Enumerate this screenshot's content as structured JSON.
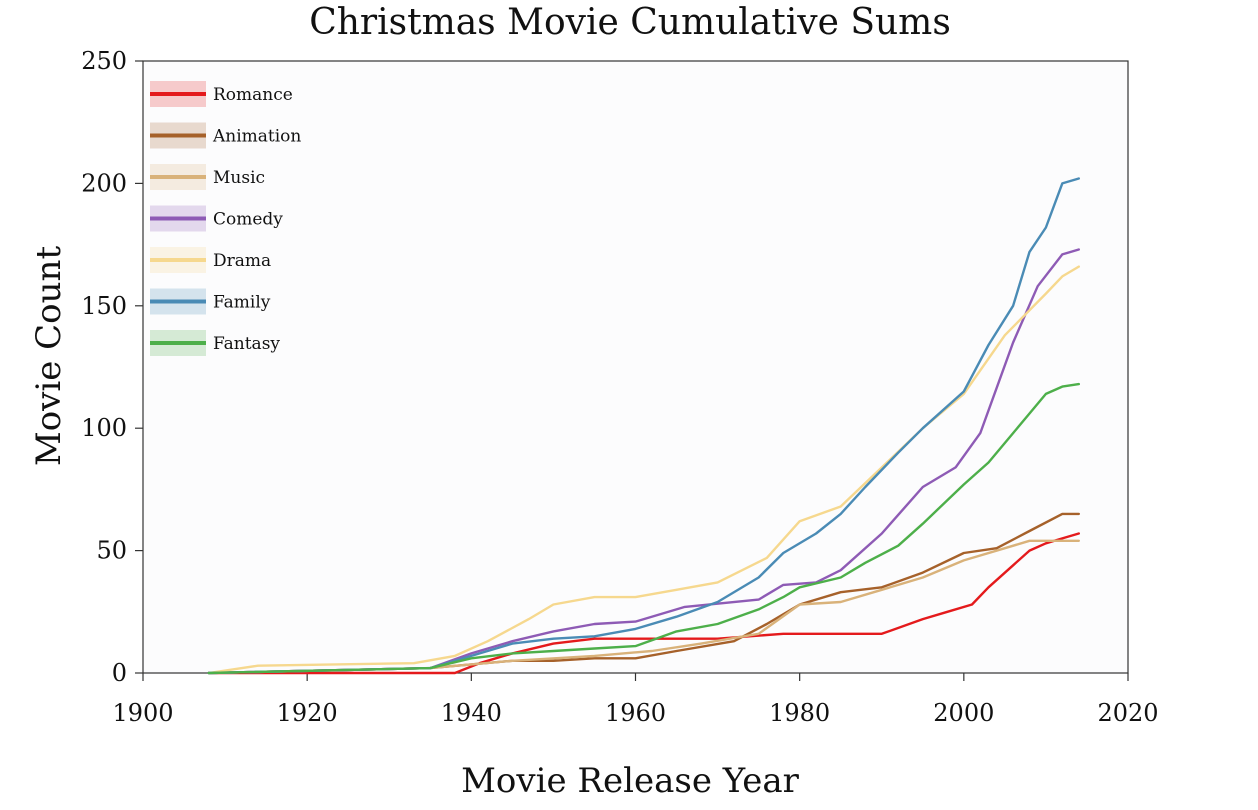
{
  "chart_data": {
    "type": "line",
    "title": "Christmas Movie Cumulative Sums",
    "xlabel": "Movie Release Year",
    "ylabel": "Movie Count",
    "xlim": [
      1900,
      2020
    ],
    "ylim": [
      0,
      250
    ],
    "xticks": [
      1900,
      1920,
      1940,
      1960,
      1980,
      2000,
      2020
    ],
    "yticks": [
      0,
      50,
      100,
      150,
      200,
      250
    ],
    "legend_position": "top-left",
    "grid": false,
    "series": [
      {
        "name": "Romance",
        "color": "#e41a1c",
        "x": [
          1908,
          1938,
          1941,
          1945,
          1950,
          1955,
          1960,
          1970,
          1978,
          1990,
          1995,
          1998,
          2001,
          2003,
          2006,
          2008,
          2010,
          2012,
          2014
        ],
        "y": [
          0,
          0,
          4,
          8,
          12,
          14,
          14,
          14,
          16,
          16,
          22,
          25,
          28,
          35,
          44,
          50,
          53,
          55,
          57
        ]
      },
      {
        "name": "Animation",
        "color": "#a6612a",
        "x": [
          1908,
          1935,
          1945,
          1950,
          1955,
          1960,
          1965,
          1972,
          1976,
          1980,
          1985,
          1990,
          1995,
          2000,
          2004,
          2008,
          2012,
          2014
        ],
        "y": [
          0,
          2,
          5,
          5,
          6,
          6,
          9,
          13,
          20,
          28,
          33,
          35,
          41,
          49,
          51,
          58,
          65,
          65
        ]
      },
      {
        "name": "Music",
        "color": "#d9b27a",
        "x": [
          1908,
          1935,
          1945,
          1955,
          1962,
          1968,
          1975,
          1980,
          1985,
          1990,
          1995,
          2000,
          2005,
          2008,
          2014
        ],
        "y": [
          0,
          2,
          5,
          7,
          9,
          12,
          16,
          28,
          29,
          34,
          39,
          46,
          51,
          54,
          54
        ]
      },
      {
        "name": "Comedy",
        "color": "#8e5bb5",
        "x": [
          1908,
          1935,
          1940,
          1945,
          1950,
          1955,
          1960,
          1966,
          1975,
          1978,
          1982,
          1985,
          1990,
          1995,
          1999,
          2002,
          2006,
          2009,
          2012,
          2014
        ],
        "y": [
          0,
          2,
          8,
          13,
          17,
          20,
          21,
          27,
          30,
          36,
          37,
          42,
          57,
          76,
          84,
          98,
          135,
          158,
          171,
          173
        ]
      },
      {
        "name": "Drama",
        "color": "#f6d88e",
        "x": [
          1908,
          1914,
          1933,
          1938,
          1942,
          1947,
          1950,
          1955,
          1960,
          1965,
          1970,
          1976,
          1980,
          1985,
          1990,
          1995,
          2000,
          2005,
          2010,
          2012,
          2014
        ],
        "y": [
          0,
          3,
          4,
          7,
          13,
          22,
          28,
          31,
          31,
          34,
          37,
          47,
          62,
          68,
          84,
          100,
          114,
          138,
          155,
          162,
          166
        ]
      },
      {
        "name": "Family",
        "color": "#4a8bb5",
        "x": [
          1908,
          1935,
          1940,
          1945,
          1950,
          1955,
          1960,
          1965,
          1970,
          1975,
          1978,
          1982,
          1985,
          1988,
          1992,
          1995,
          2000,
          2003,
          2006,
          2008,
          2010,
          2012,
          2014
        ],
        "y": [
          0,
          2,
          7,
          12,
          14,
          15,
          18,
          23,
          29,
          39,
          49,
          57,
          65,
          76,
          90,
          100,
          115,
          134,
          150,
          172,
          182,
          200,
          202
        ]
      },
      {
        "name": "Fantasy",
        "color": "#4daf4a",
        "x": [
          1908,
          1935,
          1940,
          1945,
          1950,
          1955,
          1960,
          1965,
          1970,
          1975,
          1978,
          1980,
          1985,
          1988,
          1992,
          1995,
          2000,
          2003,
          2006,
          2008,
          2010,
          2012,
          2014
        ],
        "y": [
          0,
          2,
          6,
          8,
          9,
          10,
          11,
          17,
          20,
          26,
          31,
          35,
          39,
          45,
          52,
          61,
          77,
          86,
          98,
          106,
          114,
          117,
          118
        ]
      }
    ]
  }
}
